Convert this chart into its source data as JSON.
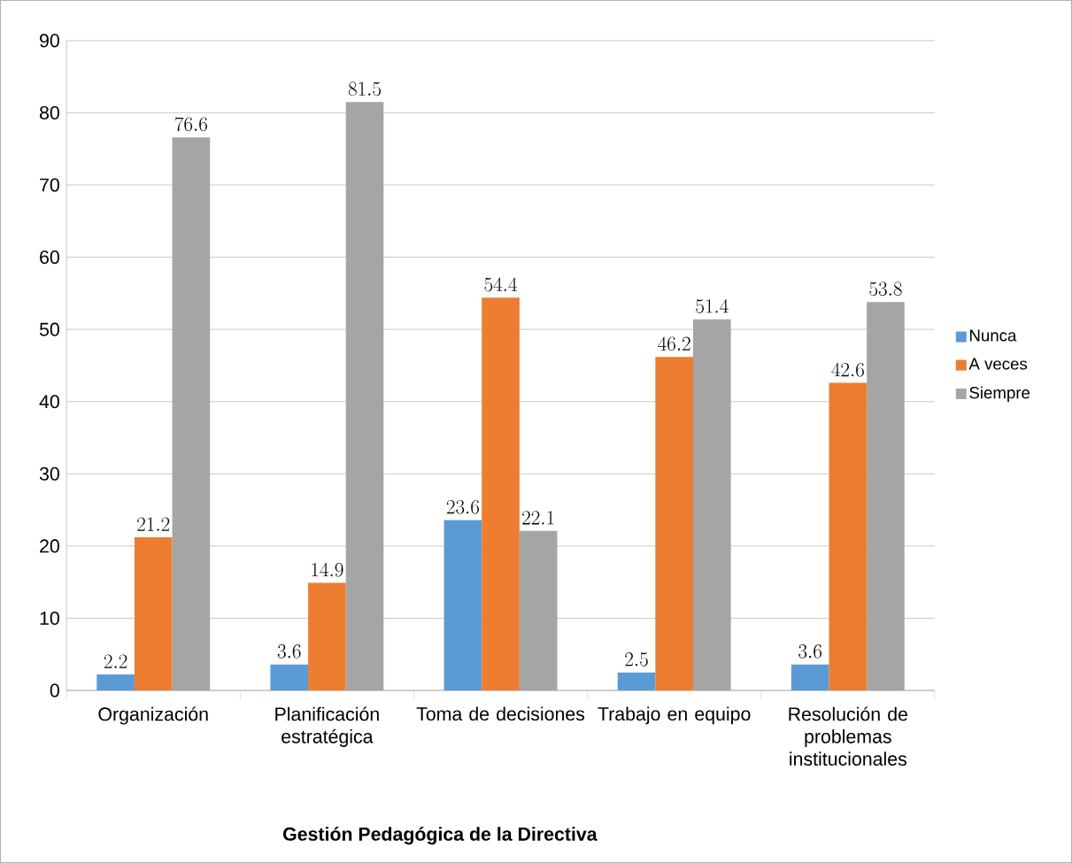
{
  "chart_data": {
    "type": "bar",
    "xlabel": "Gestión Pedagógica de la Directiva",
    "categories": [
      "Organización",
      "Planificación estratégica",
      "Toma de decisiones",
      "Trabajo en equipo",
      "Resolución de problemas institucionales"
    ],
    "series": [
      {
        "name": "Nunca",
        "color": "#5b9bd5",
        "values": [
          2.2,
          3.6,
          23.6,
          2.5,
          3.6
        ]
      },
      {
        "name": "A veces",
        "color": "#ed7d31",
        "values": [
          21.2,
          14.9,
          54.4,
          46.2,
          42.6
        ]
      },
      {
        "name": "Siempre",
        "color": "#a5a5a5",
        "values": [
          76.6,
          81.5,
          22.1,
          51.4,
          53.8
        ]
      }
    ],
    "ylim": [
      0,
      90
    ],
    "yticks": [
      0,
      10,
      20,
      30,
      40,
      50,
      60,
      70,
      80,
      90
    ],
    "grid": "y",
    "legend": "right",
    "data_labels": true
  }
}
